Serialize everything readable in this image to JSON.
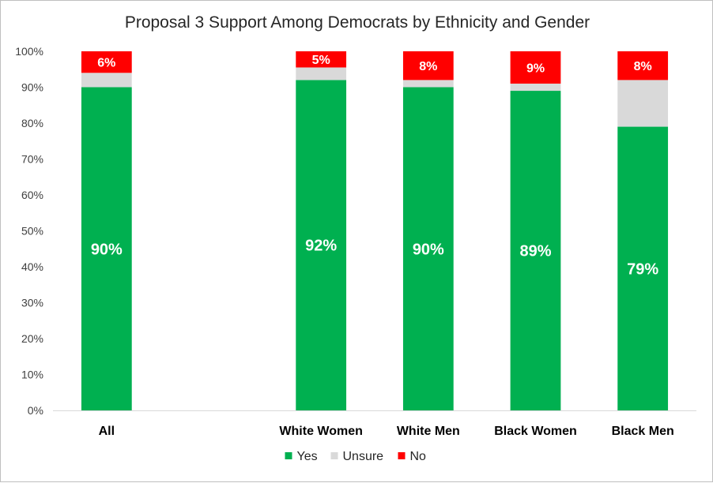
{
  "chart_data": {
    "type": "bar",
    "stacked": true,
    "title": "Proposal 3 Support Among Democrats by Ethnicity and Gender",
    "categories": [
      "All",
      "",
      "White Women",
      "White Men",
      "Black Women",
      "Black Men"
    ],
    "series": [
      {
        "name": "Yes",
        "color": "#00b050",
        "values": [
          90,
          null,
          92,
          90,
          89,
          79
        ],
        "labels": [
          "90%",
          null,
          "92%",
          "90%",
          "89%",
          "79%"
        ]
      },
      {
        "name": "Unsure",
        "color": "#d9d9d9",
        "values": [
          4,
          null,
          3.5,
          2,
          2,
          13
        ],
        "labels": [
          null,
          null,
          null,
          null,
          null,
          null
        ]
      },
      {
        "name": "No",
        "color": "#ff0000",
        "values": [
          6,
          null,
          4.5,
          8,
          9,
          8
        ],
        "labels": [
          "6%",
          null,
          "5%",
          "8%",
          "9%",
          "8%"
        ]
      }
    ],
    "ylim": [
      0,
      100
    ],
    "yticks": [
      "0%",
      "10%",
      "20%",
      "30%",
      "40%",
      "50%",
      "60%",
      "70%",
      "80%",
      "90%",
      "100%"
    ],
    "xlabel": "",
    "ylabel": "",
    "grid": false,
    "legend_position": "bottom"
  }
}
